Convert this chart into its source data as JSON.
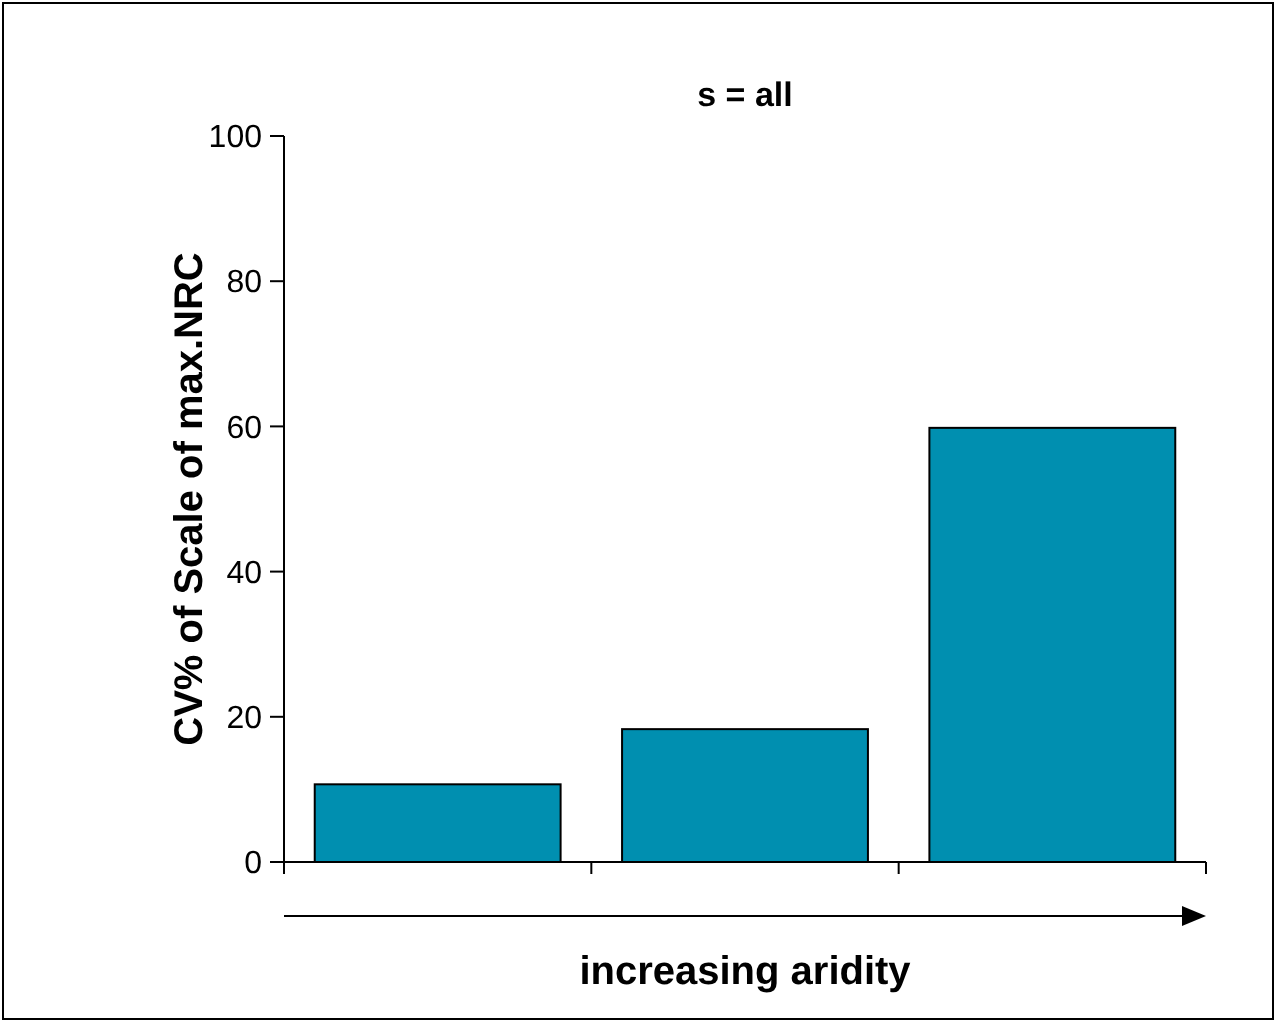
{
  "chart_data": {
    "type": "bar",
    "title": "s = all",
    "ylabel": "CV% of Scale of max.NRC",
    "xlabel": "increasing aridity",
    "categories": [
      null,
      null,
      null
    ],
    "values": [
      10.7,
      18.3,
      59.8
    ],
    "color": "#008fb0",
    "ylim": [
      0,
      100
    ],
    "yticks": [
      0,
      20,
      40,
      60,
      80,
      100
    ],
    "grid": false
  }
}
